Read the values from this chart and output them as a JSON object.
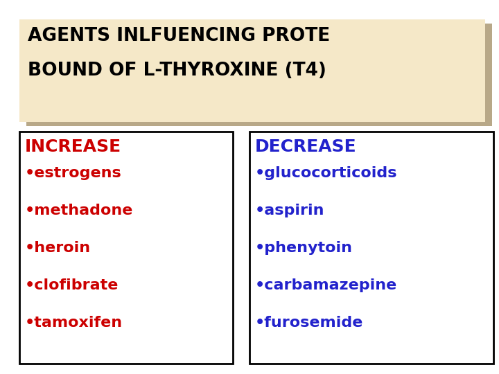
{
  "title_line1": "AGENTS INLFUENCING PROTE",
  "title_line2": "BOUND OF L-THYROXINE (T4)",
  "title_bg": "#f5e8c8",
  "title_shadow": "#b8a888",
  "title_color": "#000000",
  "bg_color": "#ffffff",
  "increase_header": "INCREASE",
  "increase_items": [
    "•estrogens",
    "•methadone",
    "•heroin",
    "•clofibrate",
    "•tamoxifen"
  ],
  "increase_color": "#cc0000",
  "decrease_header": "DECREASE",
  "decrease_items": [
    "•glucocorticoids",
    "•aspirin",
    "•phenytoin",
    "•carbamazepine",
    "•furosemide"
  ],
  "decrease_color": "#2222cc",
  "box_edge_color": "#000000",
  "font_size_title": 19,
  "font_size_header": 18,
  "font_size_items": 16
}
